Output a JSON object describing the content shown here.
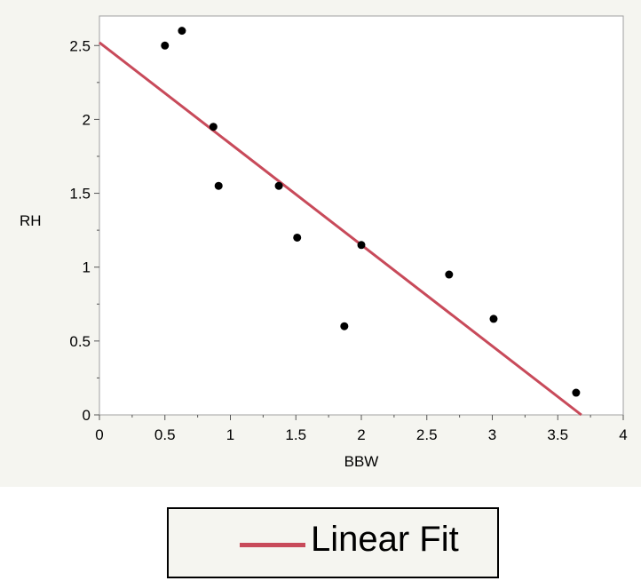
{
  "chart_data": {
    "type": "scatter",
    "title": "",
    "xlabel": "BBW",
    "ylabel": "RH",
    "xlim": [
      0,
      4
    ],
    "ylim": [
      0,
      2.7
    ],
    "xticks": [
      0,
      0.5,
      1,
      1.5,
      2,
      2.5,
      3,
      3.5,
      4
    ],
    "xtick_labels": [
      "0",
      "0.5",
      "1",
      "1.5",
      "2",
      "2.5",
      "3",
      "3.5",
      "4"
    ],
    "yticks": [
      0,
      0.5,
      1,
      1.5,
      2,
      2.5
    ],
    "ytick_labels": [
      "0",
      "0.5",
      "1",
      "1.5",
      "2",
      "2.5"
    ],
    "grid": false,
    "points": [
      {
        "x": 0.5,
        "y": 2.5
      },
      {
        "x": 0.63,
        "y": 2.6
      },
      {
        "x": 0.87,
        "y": 1.95
      },
      {
        "x": 0.91,
        "y": 1.55
      },
      {
        "x": 1.37,
        "y": 1.55
      },
      {
        "x": 1.51,
        "y": 1.2
      },
      {
        "x": 1.87,
        "y": 0.6
      },
      {
        "x": 2.0,
        "y": 1.15
      },
      {
        "x": 2.67,
        "y": 0.95
      },
      {
        "x": 3.01,
        "y": 0.65
      },
      {
        "x": 3.64,
        "y": 0.15
      }
    ],
    "fit_line": {
      "name": "Linear Fit",
      "x": [
        0,
        3.68
      ],
      "y": [
        2.52,
        0
      ],
      "color": "#c84a5a"
    },
    "point_color": "#000000",
    "legend": {
      "placement": "bottom-center",
      "label": "Linear Fit",
      "color": "#c84a5a"
    }
  }
}
